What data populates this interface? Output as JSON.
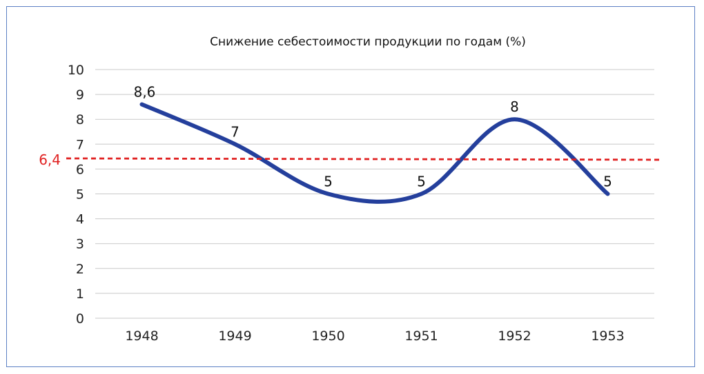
{
  "chart_data": {
    "type": "line",
    "title": "Снижение себестоимости продукции по годам (%)",
    "categories": [
      "1948",
      "1949",
      "1950",
      "1951",
      "1952",
      "1953"
    ],
    "series": [
      {
        "values": [
          8.6,
          7,
          5,
          5,
          8,
          5
        ],
        "color": "#243f9c"
      }
    ],
    "data_labels": [
      "8,6",
      "7",
      "5",
      "5",
      "8",
      "5"
    ],
    "y_ticks": [
      "0",
      "1",
      "2",
      "3",
      "4",
      "5",
      "6",
      "7",
      "8",
      "9",
      "10"
    ],
    "ylim": [
      0,
      10
    ],
    "reference_line": {
      "value": 6.4,
      "label": "6,4",
      "color": "#e02020",
      "style": "dashed"
    },
    "grid": true,
    "smooth": true
  }
}
